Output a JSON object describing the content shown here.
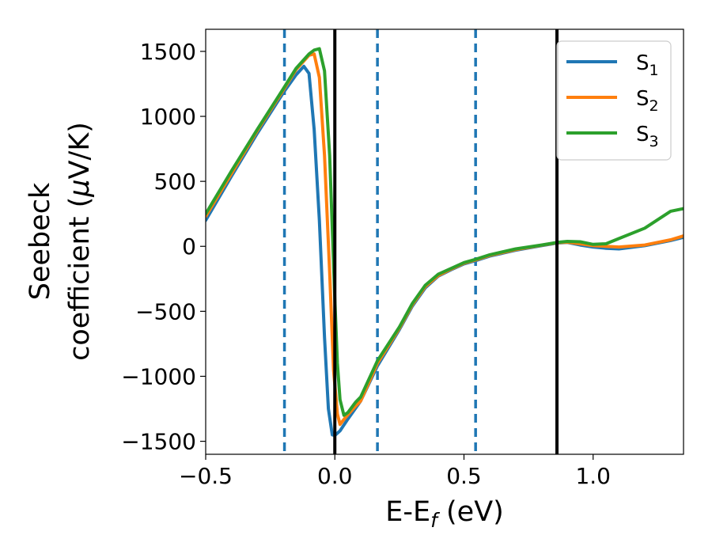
{
  "chart_data": {
    "type": "line",
    "xlabel": "E-E",
    "xlabel_sub": "f",
    "xlabel_unit": " (eV)",
    "ylabel_line1": "Seebeck",
    "ylabel_line2": "coefficient  (",
    "ylabel_mu": "μ",
    "ylabel_unit": "V/K)",
    "xlim": [
      -0.5,
      1.35
    ],
    "ylim": [
      -1600,
      1670
    ],
    "xticks": [
      -0.5,
      0.0,
      0.5,
      1.0
    ],
    "xtick_labels": [
      "−0.5",
      "0.0",
      "0.5",
      "1.0"
    ],
    "yticks": [
      -1500,
      -1000,
      -500,
      0,
      500,
      1000,
      1500
    ],
    "ytick_labels": [
      "−1500",
      "−1000",
      "−500",
      "0",
      "500",
      "1000",
      "1500"
    ],
    "grid": false,
    "legend_position": "top-right",
    "vlines_solid": {
      "color": "#000000",
      "x": [
        0.0,
        0.86
      ]
    },
    "vlines_dashed": {
      "color": "#1f77b4",
      "x": [
        -0.195,
        0.165,
        0.545
      ]
    },
    "series": [
      {
        "name": "S",
        "name_sub": "1",
        "color": "#1f77b4",
        "points": [
          [
            -0.5,
            200
          ],
          [
            -0.4,
            540
          ],
          [
            -0.3,
            870
          ],
          [
            -0.2,
            1180
          ],
          [
            -0.15,
            1320
          ],
          [
            -0.12,
            1385
          ],
          [
            -0.1,
            1330
          ],
          [
            -0.08,
            900
          ],
          [
            -0.06,
            200
          ],
          [
            -0.04,
            -700
          ],
          [
            -0.025,
            -1250
          ],
          [
            -0.01,
            -1450
          ],
          [
            0.0,
            -1455
          ],
          [
            0.02,
            -1420
          ],
          [
            0.05,
            -1330
          ],
          [
            0.1,
            -1190
          ],
          [
            0.165,
            -920
          ],
          [
            0.25,
            -640
          ],
          [
            0.3,
            -460
          ],
          [
            0.35,
            -320
          ],
          [
            0.4,
            -230
          ],
          [
            0.45,
            -180
          ],
          [
            0.5,
            -135
          ],
          [
            0.545,
            -110
          ],
          [
            0.6,
            -75
          ],
          [
            0.7,
            -30
          ],
          [
            0.8,
            5
          ],
          [
            0.86,
            25
          ],
          [
            0.9,
            30
          ],
          [
            0.95,
            10
          ],
          [
            1.0,
            -5
          ],
          [
            1.05,
            -15
          ],
          [
            1.1,
            -20
          ],
          [
            1.2,
            5
          ],
          [
            1.3,
            45
          ],
          [
            1.35,
            70
          ]
        ]
      },
      {
        "name": "S",
        "name_sub": "2",
        "color": "#ff7f0e",
        "points": [
          [
            -0.5,
            230
          ],
          [
            -0.4,
            560
          ],
          [
            -0.3,
            890
          ],
          [
            -0.2,
            1200
          ],
          [
            -0.15,
            1360
          ],
          [
            -0.1,
            1470
          ],
          [
            -0.08,
            1480
          ],
          [
            -0.06,
            1300
          ],
          [
            -0.04,
            700
          ],
          [
            -0.02,
            -200
          ],
          [
            -0.005,
            -950
          ],
          [
            0.01,
            -1290
          ],
          [
            0.02,
            -1370
          ],
          [
            0.04,
            -1320
          ],
          [
            0.08,
            -1230
          ],
          [
            0.1,
            -1190
          ],
          [
            0.165,
            -900
          ],
          [
            0.25,
            -630
          ],
          [
            0.3,
            -450
          ],
          [
            0.35,
            -310
          ],
          [
            0.4,
            -225
          ],
          [
            0.45,
            -175
          ],
          [
            0.5,
            -130
          ],
          [
            0.545,
            -105
          ],
          [
            0.6,
            -70
          ],
          [
            0.7,
            -25
          ],
          [
            0.8,
            8
          ],
          [
            0.86,
            28
          ],
          [
            0.9,
            32
          ],
          [
            0.95,
            20
          ],
          [
            1.0,
            5
          ],
          [
            1.05,
            0
          ],
          [
            1.1,
            -5
          ],
          [
            1.2,
            10
          ],
          [
            1.3,
            50
          ],
          [
            1.35,
            80
          ]
        ]
      },
      {
        "name": "S",
        "name_sub": "3",
        "color": "#2ca02c",
        "points": [
          [
            -0.5,
            250
          ],
          [
            -0.4,
            580
          ],
          [
            -0.3,
            900
          ],
          [
            -0.2,
            1210
          ],
          [
            -0.15,
            1370
          ],
          [
            -0.1,
            1480
          ],
          [
            -0.08,
            1510
          ],
          [
            -0.06,
            1520
          ],
          [
            -0.04,
            1350
          ],
          [
            -0.02,
            700
          ],
          [
            0.0,
            -400
          ],
          [
            0.01,
            -900
          ],
          [
            0.02,
            -1180
          ],
          [
            0.035,
            -1300
          ],
          [
            0.05,
            -1280
          ],
          [
            0.08,
            -1200
          ],
          [
            0.1,
            -1160
          ],
          [
            0.165,
            -880
          ],
          [
            0.25,
            -620
          ],
          [
            0.3,
            -440
          ],
          [
            0.35,
            -300
          ],
          [
            0.4,
            -215
          ],
          [
            0.45,
            -170
          ],
          [
            0.5,
            -125
          ],
          [
            0.545,
            -100
          ],
          [
            0.6,
            -65
          ],
          [
            0.7,
            -20
          ],
          [
            0.8,
            10
          ],
          [
            0.86,
            30
          ],
          [
            0.9,
            38
          ],
          [
            0.95,
            35
          ],
          [
            1.0,
            15
          ],
          [
            1.05,
            20
          ],
          [
            1.1,
            60
          ],
          [
            1.2,
            140
          ],
          [
            1.3,
            270
          ],
          [
            1.35,
            290
          ]
        ]
      }
    ]
  }
}
